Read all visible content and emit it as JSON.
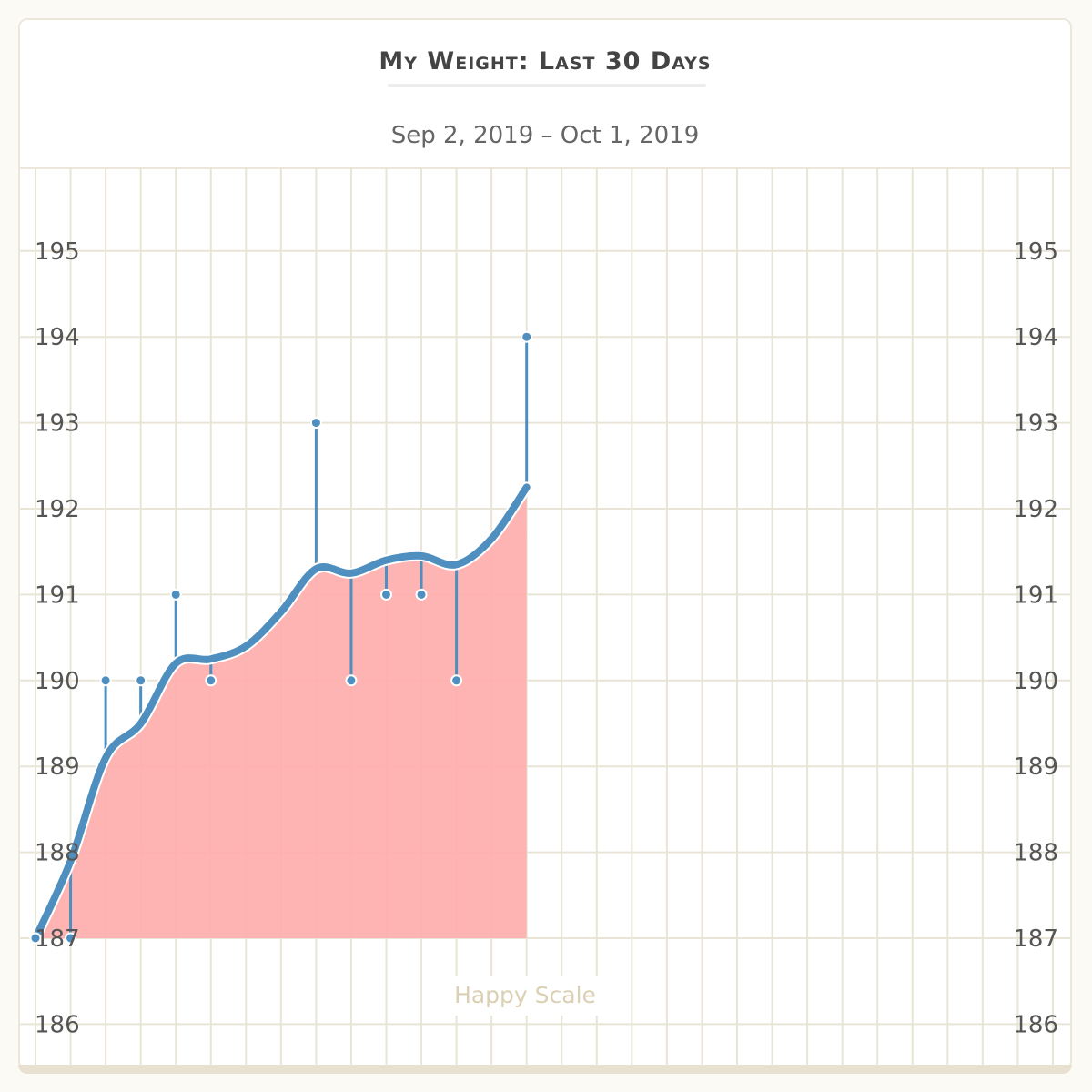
{
  "chart_data": {
    "type": "line",
    "title": "My Weight: Last 30 Days",
    "subtitle": "Sep 2, 2019 – Oct 1, 2019",
    "x_range": [
      "2019-09-02",
      "2019-10-01"
    ],
    "ylim": [
      185.5,
      196
    ],
    "yticks": [
      186,
      187,
      188,
      189,
      190,
      191,
      192,
      193,
      194,
      195
    ],
    "grid": true,
    "weigh_ins": [
      {
        "date": "2019-09-02",
        "weight": 187
      },
      {
        "date": "2019-09-03",
        "weight": 187
      },
      {
        "date": "2019-09-04",
        "weight": 190
      },
      {
        "date": "2019-09-05",
        "weight": 190
      },
      {
        "date": "2019-09-06",
        "weight": 191
      },
      {
        "date": "2019-09-07",
        "weight": 190
      },
      {
        "date": "2019-09-10",
        "weight": 193
      },
      {
        "date": "2019-09-11",
        "weight": 190
      },
      {
        "date": "2019-09-12",
        "weight": 191
      },
      {
        "date": "2019-09-13",
        "weight": 191
      },
      {
        "date": "2019-09-14",
        "weight": 190
      },
      {
        "date": "2019-09-16",
        "weight": 194
      }
    ],
    "moving_average": [
      {
        "date": "2019-09-02",
        "weight": 187.0
      },
      {
        "date": "2019-09-03",
        "weight": 187.9
      },
      {
        "date": "2019-09-04",
        "weight": 189.1
      },
      {
        "date": "2019-09-05",
        "weight": 189.5
      },
      {
        "date": "2019-09-06",
        "weight": 190.2
      },
      {
        "date": "2019-09-07",
        "weight": 190.25
      },
      {
        "date": "2019-09-08",
        "weight": 190.4
      },
      {
        "date": "2019-09-09",
        "weight": 190.8
      },
      {
        "date": "2019-09-10",
        "weight": 191.3
      },
      {
        "date": "2019-09-11",
        "weight": 191.25
      },
      {
        "date": "2019-09-12",
        "weight": 191.4
      },
      {
        "date": "2019-09-13",
        "weight": 191.45
      },
      {
        "date": "2019-09-14",
        "weight": 191.35
      },
      {
        "date": "2019-09-15",
        "weight": 191.65
      },
      {
        "date": "2019-09-16",
        "weight": 192.25
      }
    ],
    "colors": {
      "line": "#4f8fbf",
      "area": "#ffacac",
      "grid": "#e9e5d6"
    }
  },
  "watermark": "Happy Scale"
}
